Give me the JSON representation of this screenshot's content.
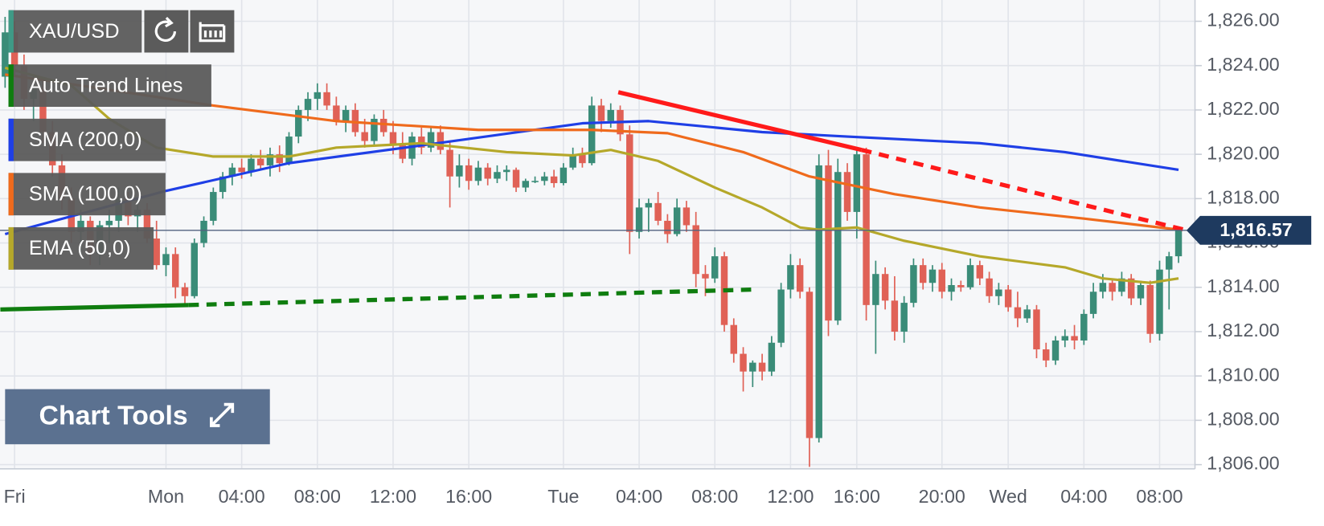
{
  "chart_data": {
    "type": "candlestick",
    "symbol": "XAU/USD",
    "symbol_color": "#3f9a86",
    "tools_label": "Chart Tools",
    "up_color": "#3a8c78",
    "down_color": "#e06156",
    "grid": true,
    "ylim": [
      1805.81,
      1826.96
    ],
    "yticks": [
      {
        "value": 1806,
        "label": "1,806.00"
      },
      {
        "value": 1808,
        "label": "1,808.00"
      },
      {
        "value": 1810,
        "label": "1,810.00"
      },
      {
        "value": 1812,
        "label": "1,812.00"
      },
      {
        "value": 1814,
        "label": "1,814.00"
      },
      {
        "value": 1816,
        "label": "1,816.00"
      },
      {
        "value": 1818,
        "label": "1,818.00"
      },
      {
        "value": 1820,
        "label": "1,820.00"
      },
      {
        "value": 1822,
        "label": "1,822.00"
      },
      {
        "value": 1824,
        "label": "1,824.00"
      },
      {
        "value": 1826,
        "label": "1,826.00"
      }
    ],
    "xlim": [
      -0.54,
      125.74
    ],
    "categories": [
      null,
      "Fri",
      null,
      null,
      null,
      null,
      null,
      null,
      null,
      null,
      null,
      null,
      null,
      null,
      null,
      null,
      null,
      "Mon",
      null,
      null,
      null,
      null,
      null,
      null,
      null,
      "04:00",
      null,
      null,
      null,
      null,
      null,
      null,
      null,
      "08:00",
      null,
      null,
      null,
      null,
      null,
      null,
      null,
      "12:00",
      null,
      null,
      null,
      null,
      null,
      null,
      null,
      "16:00",
      null,
      null,
      null,
      null,
      null,
      null,
      null,
      null,
      null,
      "Tue",
      null,
      null,
      null,
      null,
      null,
      null,
      null,
      "04:00",
      null,
      null,
      null,
      null,
      null,
      null,
      null,
      "08:00",
      null,
      null,
      null,
      null,
      null,
      null,
      null,
      "12:00",
      null,
      null,
      null,
      null,
      null,
      null,
      "16:00",
      null,
      null,
      null,
      null,
      null,
      null,
      null,
      null,
      "20:00",
      null,
      null,
      null,
      null,
      null,
      null,
      "Wed",
      null,
      null,
      null,
      null,
      null,
      null,
      null,
      "04:00",
      null,
      null,
      null,
      null,
      null,
      null,
      null,
      "08:00",
      null,
      null
    ],
    "ohlc": [
      [
        1823.5,
        1826.2,
        1823,
        1825.5
      ],
      [
        1825.5,
        1826,
        1823.5,
        1824
      ],
      [
        1824,
        1824.5,
        1822,
        1822.5
      ],
      [
        1822.5,
        1823.5,
        1821.5,
        1823
      ],
      [
        1823,
        1823.3,
        1820.5,
        1821
      ],
      [
        1821,
        1821.5,
        1819,
        1819.5
      ],
      [
        1819.5,
        1820,
        1817.5,
        1818
      ],
      [
        1818,
        1818.5,
        1816,
        1816.5
      ],
      [
        1816.5,
        1817.5,
        1815.5,
        1817
      ],
      [
        1817,
        1817.2,
        1815,
        1815.5
      ],
      [
        1815.5,
        1817,
        1815,
        1816.8
      ],
      [
        1816.8,
        1817.5,
        1816,
        1817
      ],
      [
        1817,
        1818.5,
        1816.5,
        1818
      ],
      [
        1818,
        1818.3,
        1816.8,
        1817.2
      ],
      [
        1817.2,
        1818,
        1816.5,
        1817.5
      ],
      [
        1817.5,
        1817.8,
        1816,
        1816.2
      ],
      [
        1816.2,
        1817,
        1814.8,
        1815
      ],
      [
        1815,
        1815.8,
        1814.5,
        1815.5
      ],
      [
        1815.5,
        1815.8,
        1813.5,
        1814
      ],
      [
        1814,
        1814.2,
        1813.2,
        1813.6
      ],
      [
        1813.6,
        1816.2,
        1813.5,
        1816
      ],
      [
        1816,
        1817.2,
        1815.8,
        1817
      ],
      [
        1817,
        1818.5,
        1816.8,
        1818.3
      ],
      [
        1818.3,
        1819.2,
        1818,
        1819
      ],
      [
        1819,
        1819.6,
        1818.6,
        1819.4
      ],
      [
        1819.4,
        1819.8,
        1818.9,
        1819.2
      ],
      [
        1819.2,
        1820,
        1819,
        1819.8
      ],
      [
        1819.8,
        1820.2,
        1819.3,
        1819.5
      ],
      [
        1819.5,
        1820.3,
        1819,
        1820
      ],
      [
        1820,
        1820.4,
        1819.2,
        1819.6
      ],
      [
        1819.6,
        1821,
        1819.5,
        1820.8
      ],
      [
        1820.8,
        1822.2,
        1820.5,
        1822
      ],
      [
        1822,
        1822.8,
        1821.5,
        1822.5
      ],
      [
        1822.5,
        1823.2,
        1822,
        1822.8
      ],
      [
        1822.8,
        1823.2,
        1822,
        1822.2
      ],
      [
        1822.2,
        1822.6,
        1821.3,
        1821.5
      ],
      [
        1821.5,
        1822.2,
        1821,
        1822
      ],
      [
        1822,
        1822.3,
        1820.8,
        1821
      ],
      [
        1821,
        1821.6,
        1820.3,
        1820.6
      ],
      [
        1820.6,
        1821.8,
        1820.4,
        1821.6
      ],
      [
        1821.6,
        1822,
        1820.8,
        1821
      ],
      [
        1821,
        1821.5,
        1820,
        1820.4
      ],
      [
        1820.4,
        1821,
        1819.6,
        1819.8
      ],
      [
        1819.8,
        1821,
        1819.5,
        1820.8
      ],
      [
        1820.8,
        1821.2,
        1820,
        1820.3
      ],
      [
        1820.3,
        1821.2,
        1820.1,
        1821
      ],
      [
        1821,
        1821.3,
        1820,
        1820.2
      ],
      [
        1820.2,
        1820.6,
        1817.6,
        1819
      ],
      [
        1819,
        1820,
        1818.5,
        1819.5
      ],
      [
        1819.5,
        1819.8,
        1818.4,
        1818.8
      ],
      [
        1818.8,
        1819.7,
        1818.6,
        1819.4
      ],
      [
        1819.4,
        1819.6,
        1818.6,
        1818.9
      ],
      [
        1818.9,
        1819.5,
        1818.7,
        1819.2
      ],
      [
        1819.2,
        1819.5,
        1818.8,
        1819.3
      ],
      [
        1819.3,
        1819.4,
        1818.3,
        1818.5
      ],
      [
        1818.5,
        1818.9,
        1818.3,
        1818.8
      ],
      [
        1818.8,
        1819,
        1818.7,
        1818.8
      ],
      [
        1818.8,
        1819.2,
        1818.6,
        1819
      ],
      [
        1819,
        1819.3,
        1818.5,
        1818.7
      ],
      [
        1818.7,
        1819.6,
        1818.6,
        1819.4
      ],
      [
        1819.4,
        1820.3,
        1819.3,
        1820
      ],
      [
        1820,
        1820.3,
        1819.4,
        1819.6
      ],
      [
        1819.6,
        1822.6,
        1819.5,
        1822.2
      ],
      [
        1822.2,
        1822.5,
        1821,
        1821.5
      ],
      [
        1821.5,
        1822.3,
        1821.2,
        1822
      ],
      [
        1822,
        1822.2,
        1820.6,
        1820.9
      ],
      [
        1820.9,
        1821.3,
        1815.5,
        1816.5
      ],
      [
        1816.5,
        1818,
        1816.2,
        1817.6
      ],
      [
        1817.6,
        1818,
        1816.5,
        1817.8
      ],
      [
        1817.8,
        1818.3,
        1816.8,
        1817
      ],
      [
        1817,
        1817.3,
        1816,
        1816.4
      ],
      [
        1816.4,
        1818,
        1816.3,
        1817.6
      ],
      [
        1817.6,
        1817.9,
        1816.5,
        1816.8
      ],
      [
        1816.8,
        1817.4,
        1814,
        1814.6
      ],
      [
        1814.6,
        1815,
        1813.6,
        1814.4
      ],
      [
        1814.4,
        1815.8,
        1814.2,
        1815.4
      ],
      [
        1815.4,
        1815.6,
        1812,
        1812.3
      ],
      [
        1812.3,
        1812.6,
        1810.6,
        1811
      ],
      [
        1811,
        1811.3,
        1809.3,
        1810.2
      ],
      [
        1810.2,
        1810.7,
        1809.5,
        1810.6
      ],
      [
        1810.6,
        1811,
        1809.8,
        1810.2
      ],
      [
        1810.2,
        1811.8,
        1810,
        1811.5
      ],
      [
        1811.5,
        1814.2,
        1811.3,
        1813.9
      ],
      [
        1813.9,
        1815.5,
        1813.5,
        1815
      ],
      [
        1815,
        1815.3,
        1813.5,
        1813.8
      ],
      [
        1813.8,
        1814,
        1805.9,
        1807.2
      ],
      [
        1807.2,
        1820,
        1807,
        1819.5
      ],
      [
        1819.5,
        1820.2,
        1811.8,
        1812.5
      ],
      [
        1812.5,
        1819.8,
        1812.3,
        1819.2
      ],
      [
        1819.2,
        1819.6,
        1817,
        1817.4
      ],
      [
        1817.4,
        1820.2,
        1816.2,
        1820
      ],
      [
        1820,
        1820.3,
        1812.5,
        1813.2
      ],
      [
        1813.2,
        1815.2,
        1811,
        1814.6
      ],
      [
        1814.6,
        1814.9,
        1813,
        1813.4
      ],
      [
        1813.4,
        1814.5,
        1811.6,
        1812
      ],
      [
        1812,
        1813.6,
        1811.5,
        1813.3
      ],
      [
        1813.3,
        1815.3,
        1813.1,
        1815
      ],
      [
        1815,
        1815.3,
        1813.9,
        1814.2
      ],
      [
        1814.2,
        1815,
        1813.8,
        1814.8
      ],
      [
        1814.8,
        1815.1,
        1813.5,
        1813.8
      ],
      [
        1813.8,
        1814.4,
        1813.4,
        1814.1
      ],
      [
        1814.1,
        1814.3,
        1813.8,
        1814
      ],
      [
        1814,
        1815.3,
        1813.9,
        1815
      ],
      [
        1815,
        1815.2,
        1814.1,
        1814.4
      ],
      [
        1814.4,
        1814.7,
        1813.3,
        1813.6
      ],
      [
        1813.6,
        1814.2,
        1813.2,
        1813.9
      ],
      [
        1813.9,
        1814.1,
        1812.9,
        1813.1
      ],
      [
        1813.1,
        1813.8,
        1812.2,
        1812.6
      ],
      [
        1812.6,
        1813.2,
        1812.4,
        1813
      ],
      [
        1813,
        1813.2,
        1810.8,
        1811.2
      ],
      [
        1811.2,
        1811.5,
        1810.4,
        1810.7
      ],
      [
        1810.7,
        1811.8,
        1810.5,
        1811.6
      ],
      [
        1811.6,
        1812.1,
        1811.3,
        1811.8
      ],
      [
        1811.8,
        1812.3,
        1811.2,
        1811.6
      ],
      [
        1811.6,
        1813,
        1811.4,
        1812.8
      ],
      [
        1812.8,
        1814.2,
        1812.6,
        1813.8
      ],
      [
        1813.8,
        1814.6,
        1813.5,
        1814.2
      ],
      [
        1814.2,
        1814.4,
        1813.4,
        1813.8
      ],
      [
        1813.8,
        1814.7,
        1813.6,
        1814.4
      ],
      [
        1814.4,
        1814.6,
        1813.2,
        1813.5
      ],
      [
        1813.5,
        1814.3,
        1813.2,
        1814.1
      ],
      [
        1814.1,
        1814.3,
        1811.5,
        1811.9
      ],
      [
        1811.9,
        1815.2,
        1811.6,
        1814.8
      ],
      [
        1814.8,
        1815.6,
        1813,
        1815.4
      ],
      [
        1815.4,
        1816.6,
        1815.1,
        1816.57
      ]
    ],
    "series": [
      {
        "name": "SMA (200,0)",
        "color": "#1f3fe6",
        "x": [
          0,
          17,
          30,
          44,
          61,
          68,
          80,
          89,
          103,
          112,
          124
        ],
        "values": [
          1816.4,
          1818.35,
          1819.6,
          1820.4,
          1821.4,
          1821.5,
          1821.0,
          1820.8,
          1820.5,
          1820.1,
          1819.3
        ]
      },
      {
        "name": "SMA (100,0)",
        "color": "#ef6a1c",
        "x": [
          0,
          8,
          22,
          35,
          50,
          62,
          70,
          78,
          85,
          94,
          103,
          114,
          124
        ],
        "values": [
          1823.6,
          1823.1,
          1822.2,
          1821.5,
          1821.1,
          1821.1,
          1820.95,
          1820.1,
          1819.0,
          1818.2,
          1817.6,
          1817.1,
          1816.6
        ]
      },
      {
        "name": "EMA (50,0)",
        "color": "#b5a82a",
        "x": [
          0,
          7,
          11,
          16,
          22,
          30,
          35,
          44,
          53,
          60,
          64,
          69,
          75,
          80,
          84,
          86,
          90,
          95,
          103,
          112,
          116,
          121,
          124
        ],
        "values": [
          1823.9,
          1823.1,
          1821.6,
          1820.3,
          1819.9,
          1819.9,
          1820.3,
          1820.5,
          1820.1,
          1819.95,
          1820.2,
          1819.7,
          1818.5,
          1817.6,
          1816.7,
          1816.6,
          1816.7,
          1816.1,
          1815.4,
          1814.9,
          1814.4,
          1814.2,
          1814.4
        ]
      }
    ],
    "trend_lines": {
      "name": "Auto Trend Lines",
      "color": "#0f7d0f",
      "lines": [
        {
          "color": "#ff1a1a",
          "dashed": false,
          "x": [
            64.8,
            90.5
          ],
          "values": [
            1822.8,
            1820.2
          ]
        },
        {
          "color": "#ff1a1a",
          "dashed": true,
          "x": [
            90.5,
            124.6
          ],
          "values": [
            1820.2,
            1816.6
          ]
        },
        {
          "color": "#0f7d0f",
          "dashed": false,
          "x": [
            -0.5,
            19.4
          ],
          "values": [
            1813.0,
            1813.2
          ]
        },
        {
          "color": "#0f7d0f",
          "dashed": true,
          "x": [
            19.4,
            79.1
          ],
          "values": [
            1813.2,
            1813.9
          ]
        }
      ]
    },
    "last_price": {
      "value": 1816.57,
      "label": "1,816.57",
      "color": "#1e3a5f"
    }
  }
}
